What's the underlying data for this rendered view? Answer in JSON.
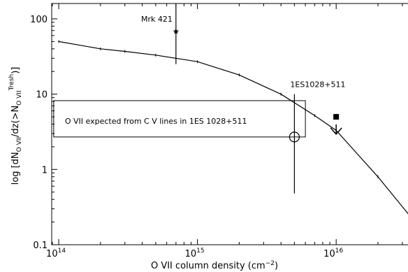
{
  "chart_data": {
    "type": "line",
    "xlabel_main": "O VII column density (cm",
    "xlabel_exp": "−2",
    "xlabel_close": ")",
    "ylabel": {
      "open": "log [dN",
      "sub1": "O VII",
      "mid": "/dz(>N",
      "sub2": "O VII",
      "sup": "Tresh",
      "close": ")]"
    },
    "x_scale": "log",
    "y_scale": "log",
    "xlim": [
      89000000000000.0,
      3.7e+16
    ],
    "ylim": [
      0.1,
      160
    ],
    "x_ticks": [
      {
        "value": 100000000000000.0,
        "mantissa": "10",
        "exp": "14"
      },
      {
        "value": 1000000000000000.0,
        "mantissa": "10",
        "exp": "15"
      },
      {
        "value": 1e+16,
        "mantissa": "10",
        "exp": "16"
      }
    ],
    "y_ticks": [
      {
        "value": 0.1,
        "label": "0.1"
      },
      {
        "value": 1,
        "label": "1"
      },
      {
        "value": 10,
        "label": "10"
      },
      {
        "value": 100,
        "label": "100"
      }
    ],
    "series": [
      {
        "x": [
          100000000000000.0,
          200000000000000.0,
          300000000000000.0,
          500000000000000.0,
          1000000000000000.0,
          2000000000000000.0,
          4000000000000000.0,
          7000000000000000.0,
          1e+16,
          2e+16,
          3.7e+16
        ],
        "y": [
          50,
          40,
          37,
          33,
          27,
          18,
          10,
          5.2,
          3.3,
          0.8,
          0.2
        ]
      }
    ],
    "annotations": [
      {
        "text": "Mrk 421",
        "x": 700000000000000.0,
        "y": 68,
        "marker": "star",
        "err_y": [
          25,
          160
        ]
      },
      {
        "text": "1ES1028+511",
        "x": 5000000000000000.0,
        "y": 2.7,
        "marker": "open-circle",
        "err_y": [
          0.48,
          10
        ]
      },
      {
        "marker": "filled-square",
        "x": 1e+16,
        "y": 5.0
      },
      {
        "marker": "upper-limit-arrow",
        "x": 1e+16,
        "y": 3.8
      }
    ],
    "box": {
      "text": "O VII expected from C V lines in 1ES 1028+511",
      "x": [
        92000000000000.0,
        6000000000000000.0
      ],
      "y": [
        2.7,
        8.2
      ]
    }
  }
}
